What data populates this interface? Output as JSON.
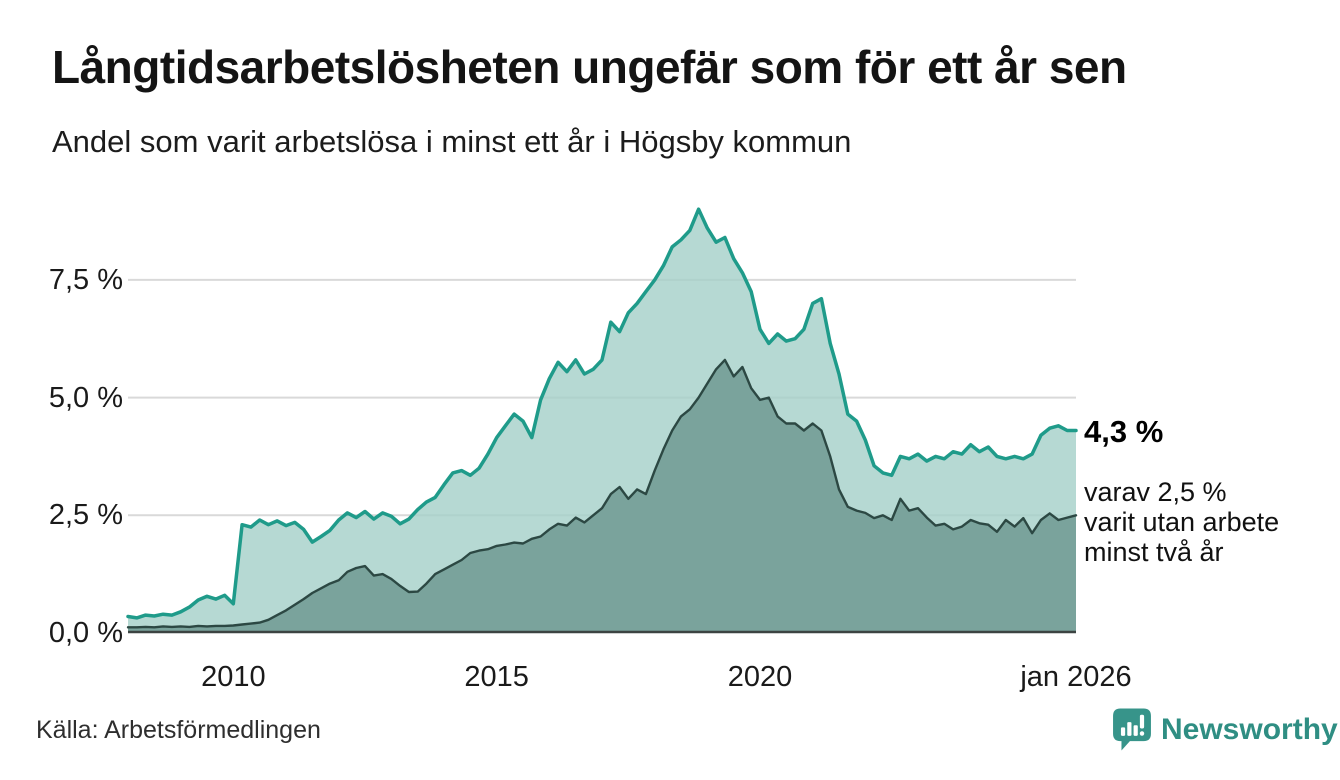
{
  "header": {
    "title": "Långtidsarbetslösheten ungefär som för ett år sen",
    "subtitle": "Andel som varit arbetslösa i minst ett år i Högsby kommun"
  },
  "annotations": {
    "latest_value_label": "4,3 %",
    "note_lines": [
      "varav 2,5 %",
      "varit utan arbete",
      "minst två år"
    ]
  },
  "source": {
    "label": "Källa: Arbetsförmedlingen"
  },
  "branding": {
    "name": "Newsworthy",
    "color": "#37948a"
  },
  "chart_data": {
    "type": "area",
    "title": "Långtidsarbetslösheten ungefär som för ett år sen",
    "xlabel": "",
    "ylabel": "",
    "xlim": [
      2008,
      2026
    ],
    "ylim": [
      0,
      9.09
    ],
    "x_start": 2008.0,
    "x_step_years": 0.16667,
    "grid": true,
    "grid_values": [
      2.5,
      5,
      7.5
    ],
    "grid_color": "#d9d9d9",
    "baseline_color": "#3c4442",
    "y_ticks": [
      {
        "v": 0,
        "label": "0,0 %"
      },
      {
        "v": 2.5,
        "label": "2,5 %"
      },
      {
        "v": 5,
        "label": "5,0 %"
      },
      {
        "v": 7.5,
        "label": "7,5 %"
      }
    ],
    "x_ticks": [
      {
        "v": 2010,
        "label": "2010"
      },
      {
        "v": 2015,
        "label": "2015"
      },
      {
        "v": 2020,
        "label": "2020"
      },
      {
        "v": 2026,
        "label": "jan 2026"
      }
    ],
    "series": [
      {
        "name": "Arbetslösa minst ett år",
        "end_value": 4.3,
        "line_color": "#1f9b8a",
        "line_width": 3.5,
        "fill_color": "#a4cfc8",
        "fill_opacity": 0.8,
        "values": [
          0.35,
          0.32,
          0.38,
          0.36,
          0.4,
          0.38,
          0.45,
          0.55,
          0.7,
          0.78,
          0.72,
          0.8,
          0.62,
          2.3,
          2.25,
          2.4,
          2.3,
          2.38,
          2.28,
          2.35,
          2.2,
          1.93,
          2.05,
          2.18,
          2.4,
          2.55,
          2.45,
          2.58,
          2.42,
          2.55,
          2.48,
          2.32,
          2.42,
          2.62,
          2.78,
          2.88,
          3.15,
          3.4,
          3.45,
          3.35,
          3.5,
          3.8,
          4.15,
          4.4,
          4.65,
          4.5,
          4.15,
          4.95,
          5.4,
          5.75,
          5.55,
          5.8,
          5.5,
          5.6,
          5.8,
          6.6,
          6.4,
          6.8,
          7.0,
          7.25,
          7.5,
          7.8,
          8.2,
          8.35,
          8.55,
          9.0,
          8.6,
          8.3,
          8.4,
          7.95,
          7.65,
          7.25,
          6.45,
          6.15,
          6.35,
          6.2,
          6.25,
          6.45,
          7.0,
          7.1,
          6.15,
          5.5,
          4.65,
          4.5,
          4.1,
          3.55,
          3.4,
          3.35,
          3.75,
          3.7,
          3.8,
          3.65,
          3.75,
          3.7,
          3.85,
          3.8,
          4.0,
          3.85,
          3.95,
          3.75,
          3.7,
          3.75,
          3.7,
          3.8,
          4.2,
          4.35,
          4.4,
          4.3,
          4.3
        ]
      },
      {
        "name": "Arbetslösa minst två år",
        "end_value": 2.5,
        "line_color": "#2c4843",
        "line_width": 2.4,
        "fill_color": "#7aa39c",
        "fill_opacity": 1,
        "values": [
          0.12,
          0.12,
          0.13,
          0.12,
          0.14,
          0.13,
          0.14,
          0.13,
          0.15,
          0.14,
          0.15,
          0.15,
          0.16,
          0.18,
          0.2,
          0.22,
          0.28,
          0.38,
          0.48,
          0.6,
          0.72,
          0.85,
          0.95,
          1.05,
          1.12,
          1.3,
          1.38,
          1.42,
          1.22,
          1.25,
          1.15,
          1.0,
          0.87,
          0.88,
          1.05,
          1.25,
          1.35,
          1.45,
          1.55,
          1.7,
          1.75,
          1.78,
          1.85,
          1.88,
          1.92,
          1.9,
          2.0,
          2.05,
          2.2,
          2.32,
          2.28,
          2.45,
          2.35,
          2.5,
          2.65,
          2.95,
          3.1,
          2.85,
          3.05,
          2.95,
          3.45,
          3.9,
          4.3,
          4.6,
          4.75,
          5.0,
          5.3,
          5.6,
          5.8,
          5.45,
          5.65,
          5.2,
          4.95,
          5.0,
          4.6,
          4.45,
          4.45,
          4.3,
          4.45,
          4.3,
          3.75,
          3.05,
          2.68,
          2.6,
          2.55,
          2.44,
          2.5,
          2.4,
          2.85,
          2.6,
          2.65,
          2.45,
          2.28,
          2.32,
          2.2,
          2.26,
          2.4,
          2.33,
          2.3,
          2.15,
          2.4,
          2.26,
          2.44,
          2.12,
          2.4,
          2.54,
          2.4,
          2.45,
          2.5
        ]
      }
    ]
  }
}
